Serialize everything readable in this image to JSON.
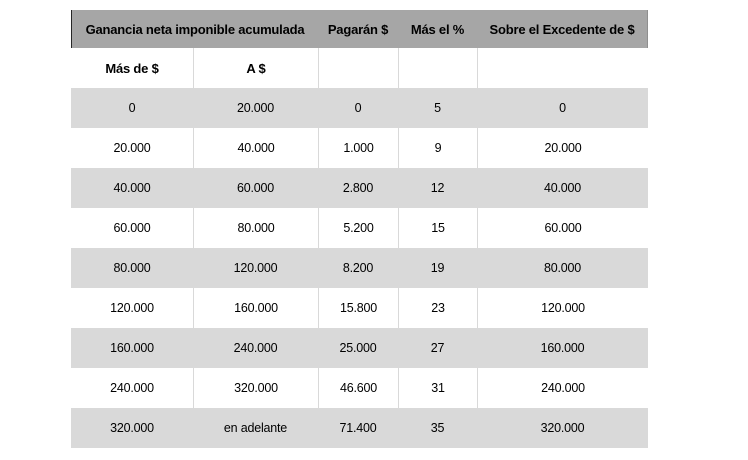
{
  "chart_data": {
    "type": "table",
    "header": {
      "group_label": "Ganancia neta imponible acumulada",
      "pagaran": "Pagarán $",
      "mas_el": "Más el %",
      "excedente": "Sobre el Excedente de $",
      "sub_mas_de": "Más de $",
      "sub_a": "A $"
    },
    "rows": [
      [
        "0",
        "20.000",
        "0",
        "5",
        "0"
      ],
      [
        "20.000",
        "40.000",
        "1.000",
        "9",
        "20.000"
      ],
      [
        "40.000",
        "60.000",
        "2.800",
        "12",
        "40.000"
      ],
      [
        "60.000",
        "80.000",
        "5.200",
        "15",
        "60.000"
      ],
      [
        "80.000",
        "120.000",
        "8.200",
        "19",
        "80.000"
      ],
      [
        "120.000",
        "160.000",
        "15.800",
        "23",
        "120.000"
      ],
      [
        "160.000",
        "240.000",
        "25.000",
        "27",
        "160.000"
      ],
      [
        "240.000",
        "320.000",
        "46.600",
        "31",
        "240.000"
      ],
      [
        "320.000",
        "en adelante",
        "71.400",
        "35",
        "320.000"
      ]
    ]
  },
  "colors": {
    "header_bg": "#a6a6a6",
    "row_alt_bg": "#d9d9d9",
    "row_bg": "#ffffff",
    "divider": "#d9d9d9",
    "text": "#000000",
    "header_edge": "#262626",
    "header_edge_right": "#8f8f8f"
  }
}
